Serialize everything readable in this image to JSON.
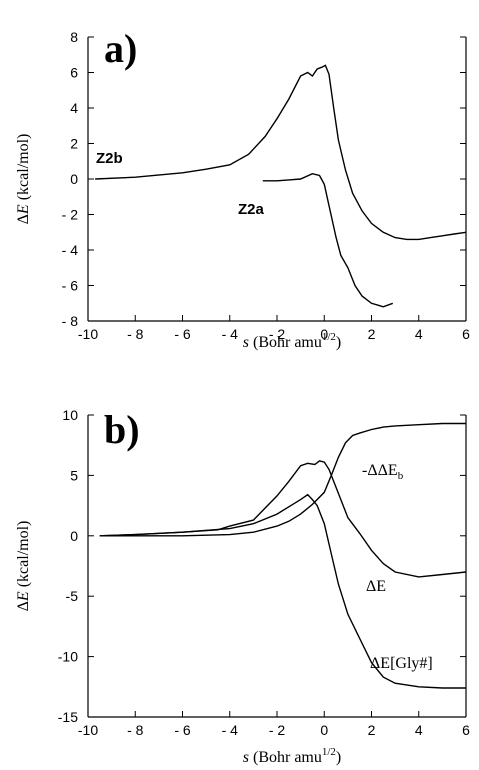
{
  "chart_data": [
    {
      "type": "line",
      "panel_label": "a)",
      "xlabel": {
        "italic": "s",
        "text": " (Bohr amu",
        "sup": "1/2",
        "end": ")"
      },
      "ylabel": {
        "prefix": "Δ",
        "italic": "E",
        "text": " (kcal/mol)"
      },
      "xlim": [
        -10,
        6
      ],
      "ylim": [
        -8,
        8
      ],
      "xticks": [
        -10,
        -8,
        -6,
        -4,
        -2,
        0,
        2,
        4,
        6
      ],
      "yticks": [
        8,
        6,
        4,
        2,
        0,
        -2,
        -4,
        -6,
        -8
      ],
      "ytick_labels": [
        "8",
        "6",
        "4",
        "2",
        "0",
        "- 2",
        "- 4",
        "- 6",
        "- 8"
      ],
      "xtick_labels": [
        "-10",
        "- 8",
        "- 6",
        "- 4",
        "- 2",
        "0",
        "2",
        "4",
        "6"
      ],
      "grid": false,
      "series": [
        {
          "name": "Z2b",
          "x": [
            -9.7,
            -8,
            -6,
            -5,
            -4,
            -3.2,
            -2.5,
            -2,
            -1.5,
            -1,
            -0.7,
            -0.5,
            -0.3,
            -0.1,
            0.05,
            0.2,
            0.4,
            0.6,
            0.9,
            1.2,
            1.6,
            2.0,
            2.5,
            3.0,
            3.5,
            4.0,
            4.5,
            5,
            5.5,
            6
          ],
          "y": [
            0,
            0.1,
            0.35,
            0.55,
            0.8,
            1.4,
            2.4,
            3.4,
            4.5,
            5.8,
            6.0,
            5.8,
            6.2,
            6.3,
            6.4,
            5.9,
            4.0,
            2.2,
            0.5,
            -0.8,
            -1.8,
            -2.5,
            -3.0,
            -3.3,
            -3.4,
            -3.4,
            -3.3,
            -3.2,
            -3.1,
            -3.0
          ]
        },
        {
          "name": "Z2a",
          "x": [
            -2.6,
            -2,
            -1.5,
            -1,
            -0.5,
            -0.2,
            0.0,
            0.2,
            0.5,
            0.7,
            1.0,
            1.3,
            1.6,
            2.0,
            2.5,
            2.9
          ],
          "y": [
            -0.1,
            -0.1,
            -0.05,
            0.0,
            0.3,
            0.2,
            -0.3,
            -1.5,
            -3.3,
            -4.3,
            -5.0,
            -6.0,
            -6.6,
            -7.0,
            -7.2,
            -7.0
          ]
        }
      ]
    },
    {
      "type": "line",
      "panel_label": "b)",
      "xlabel": {
        "italic": "s",
        "text": " (Bohr amu",
        "sup": "1/2",
        "end": ")"
      },
      "ylabel": {
        "prefix": "Δ",
        "italic": "E",
        "text": " (kcal/mol)"
      },
      "xlim": [
        -10,
        6
      ],
      "ylim": [
        -15,
        10
      ],
      "xticks": [
        -10,
        -8,
        -6,
        -4,
        -2,
        0,
        2,
        4,
        6
      ],
      "yticks": [
        10,
        5,
        0,
        -5,
        -10,
        -15
      ],
      "ytick_labels": [
        "10",
        "5",
        "0",
        "-5",
        "-10",
        "-15"
      ],
      "xtick_labels": [
        "-10",
        "- 8",
        "- 6",
        "- 4",
        "- 2",
        "0",
        "2",
        "4",
        "6"
      ],
      "grid": false,
      "series": [
        {
          "name": "-ΔΔE",
          "name_sub": "b",
          "x": [
            -9.5,
            -8,
            -6,
            -4,
            -3,
            -2,
            -1.5,
            -1,
            -0.5,
            0,
            0.3,
            0.6,
            0.9,
            1.2,
            1.5,
            2,
            2.5,
            3,
            4,
            5,
            6
          ],
          "y": [
            0,
            0,
            0,
            0.1,
            0.3,
            0.8,
            1.2,
            1.8,
            2.6,
            3.6,
            5.0,
            6.5,
            7.7,
            8.3,
            8.5,
            8.8,
            9.0,
            9.1,
            9.2,
            9.3,
            9.3
          ]
        },
        {
          "name": "ΔE",
          "x": [
            -9.5,
            -8,
            -6,
            -4.5,
            -4,
            -3,
            -2.5,
            -2,
            -1.5,
            -1,
            -0.7,
            -0.4,
            -0.2,
            0,
            0.2,
            0.5,
            1,
            1.5,
            2,
            2.5,
            3,
            4,
            5,
            6
          ],
          "y": [
            0,
            0.1,
            0.3,
            0.5,
            0.8,
            1.3,
            2.3,
            3.3,
            4.5,
            5.8,
            6.0,
            5.9,
            6.2,
            6.1,
            5.5,
            4.0,
            1.5,
            0.2,
            -1.2,
            -2.3,
            -3.0,
            -3.4,
            -3.2,
            -3.0
          ]
        },
        {
          "name": "ΔE[Gly#]",
          "x": [
            -9.5,
            -8,
            -6,
            -4,
            -3,
            -2,
            -1.5,
            -1,
            -0.7,
            -0.5,
            -0.3,
            0,
            0.3,
            0.6,
            1.0,
            1.5,
            2,
            2.5,
            3,
            4,
            5,
            6
          ],
          "y": [
            0,
            0.1,
            0.3,
            0.6,
            1.0,
            1.8,
            2.4,
            3.0,
            3.4,
            3.0,
            2.5,
            1.0,
            -1.5,
            -4.0,
            -6.5,
            -8.5,
            -10.5,
            -11.7,
            -12.2,
            -12.5,
            -12.6,
            -12.6
          ]
        }
      ]
    }
  ]
}
